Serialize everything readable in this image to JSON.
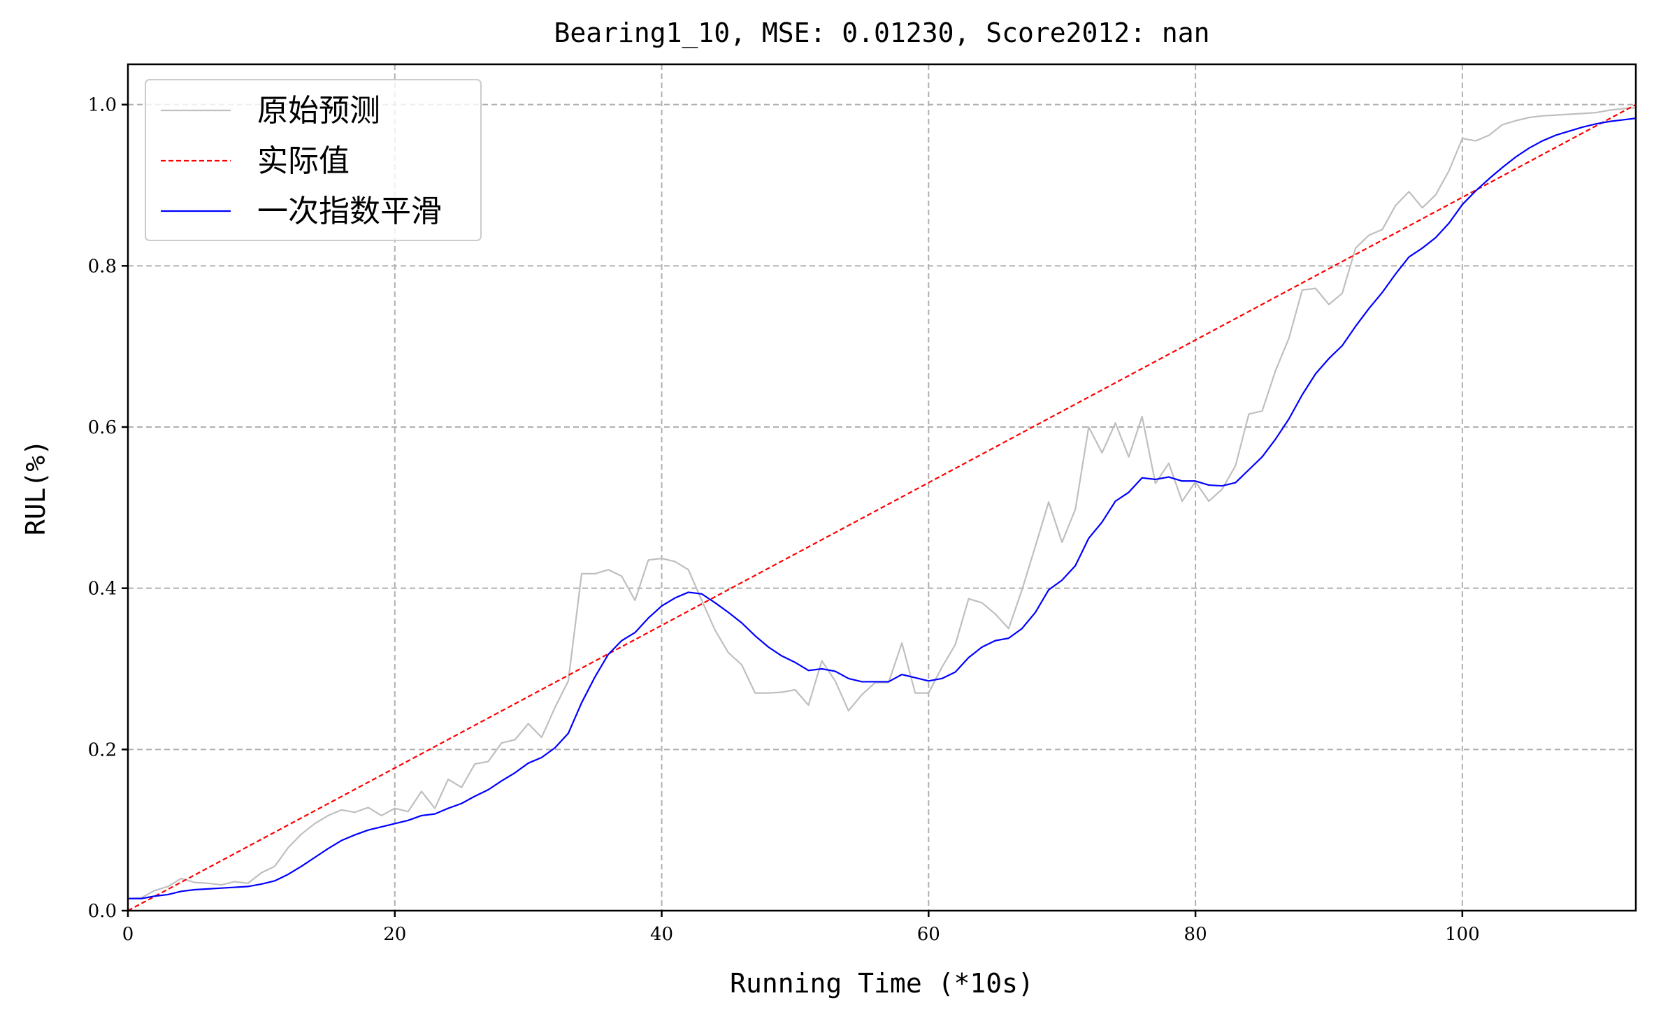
{
  "chart_data": {
    "type": "line",
    "title": "Bearing1_10, MSE: 0.01230, Score2012: nan",
    "xlabel": "Running Time (*10s)",
    "ylabel": "RUL(%)",
    "xlim": [
      0,
      113
    ],
    "ylim": [
      0,
      1.05
    ],
    "xticks": [
      0,
      20,
      40,
      60,
      80,
      100
    ],
    "yticks": [
      0.0,
      0.2,
      0.4,
      0.6,
      0.8,
      1.0
    ],
    "xtick_labels": [
      "0",
      "20",
      "40",
      "60",
      "80",
      "100"
    ],
    "ytick_labels": [
      "0.0",
      "0.2",
      "0.4",
      "0.6",
      "0.8",
      "1.0"
    ],
    "grid": true,
    "legend_position": "top-left",
    "series": [
      {
        "name": "原始预测",
        "color": "#bfbfbf",
        "style": "solid",
        "x": [
          0,
          1,
          2,
          3,
          4,
          5,
          6,
          7,
          8,
          9,
          10,
          11,
          12,
          13,
          14,
          15,
          16,
          17,
          18,
          19,
          20,
          21,
          22,
          23,
          24,
          25,
          26,
          27,
          28,
          29,
          30,
          31,
          32,
          33,
          34,
          35,
          36,
          37,
          38,
          39,
          40,
          41,
          42,
          43,
          44,
          45,
          46,
          47,
          48,
          49,
          50,
          51,
          52,
          53,
          54,
          55,
          56,
          57,
          58,
          59,
          60,
          61,
          62,
          63,
          64,
          65,
          66,
          67,
          68,
          69,
          70,
          71,
          72,
          73,
          74,
          75,
          76,
          77,
          78,
          79,
          80,
          81,
          82,
          83,
          84,
          85,
          86,
          87,
          88,
          89,
          90,
          91,
          92,
          93,
          94,
          95,
          96,
          97,
          98,
          99,
          100,
          101,
          102,
          103,
          104,
          105,
          106,
          107,
          108,
          109,
          110,
          111,
          112,
          113
        ],
        "y": [
          0.015,
          0.016,
          0.025,
          0.03,
          0.04,
          0.035,
          0.034,
          0.032,
          0.036,
          0.034,
          0.047,
          0.055,
          0.078,
          0.095,
          0.108,
          0.118,
          0.125,
          0.122,
          0.128,
          0.118,
          0.127,
          0.123,
          0.148,
          0.127,
          0.163,
          0.153,
          0.182,
          0.185,
          0.208,
          0.212,
          0.232,
          0.215,
          0.252,
          0.285,
          0.418,
          0.418,
          0.423,
          0.415,
          0.385,
          0.435,
          0.437,
          0.433,
          0.423,
          0.385,
          0.348,
          0.32,
          0.305,
          0.27,
          0.27,
          0.271,
          0.274,
          0.255,
          0.31,
          0.285,
          0.248,
          0.268,
          0.283,
          0.283,
          0.332,
          0.27,
          0.27,
          0.302,
          0.33,
          0.387,
          0.382,
          0.368,
          0.35,
          0.398,
          0.452,
          0.507,
          0.457,
          0.498,
          0.6,
          0.568,
          0.605,
          0.563,
          0.613,
          0.53,
          0.555,
          0.508,
          0.532,
          0.508,
          0.523,
          0.552,
          0.616,
          0.62,
          0.67,
          0.71,
          0.77,
          0.772,
          0.752,
          0.766,
          0.822,
          0.838,
          0.845,
          0.875,
          0.892,
          0.872,
          0.888,
          0.918,
          0.958,
          0.955,
          0.962,
          0.975,
          0.98,
          0.984,
          0.986,
          0.987,
          0.988,
          0.989,
          0.99,
          0.993,
          0.995,
          0.996
        ]
      },
      {
        "name": "实际值",
        "color": "#ff0000",
        "style": "dashed",
        "x": [
          0,
          113
        ],
        "y": [
          0.0,
          1.0
        ]
      },
      {
        "name": "一次指数平滑",
        "color": "#0000ff",
        "style": "solid",
        "x": [
          0,
          1,
          2,
          3,
          4,
          5,
          6,
          7,
          8,
          9,
          10,
          11,
          12,
          13,
          14,
          15,
          16,
          17,
          18,
          19,
          20,
          21,
          22,
          23,
          24,
          25,
          26,
          27,
          28,
          29,
          30,
          31,
          32,
          33,
          34,
          35,
          36,
          37,
          38,
          39,
          40,
          41,
          42,
          43,
          44,
          45,
          46,
          47,
          48,
          49,
          50,
          51,
          52,
          53,
          54,
          55,
          56,
          57,
          58,
          59,
          60,
          61,
          62,
          63,
          64,
          65,
          66,
          67,
          68,
          69,
          70,
          71,
          72,
          73,
          74,
          75,
          76,
          77,
          78,
          79,
          80,
          81,
          82,
          83,
          84,
          85,
          86,
          87,
          88,
          89,
          90,
          91,
          92,
          93,
          94,
          95,
          96,
          97,
          98,
          99,
          100,
          101,
          102,
          103,
          104,
          105,
          106,
          107,
          108,
          109,
          110,
          111,
          112,
          113
        ],
        "y": [
          0.015,
          0.015,
          0.018,
          0.02,
          0.024,
          0.026,
          0.027,
          0.028,
          0.029,
          0.03,
          0.033,
          0.037,
          0.045,
          0.055,
          0.066,
          0.077,
          0.087,
          0.094,
          0.1,
          0.104,
          0.108,
          0.112,
          0.118,
          0.12,
          0.127,
          0.133,
          0.142,
          0.15,
          0.161,
          0.171,
          0.183,
          0.19,
          0.202,
          0.22,
          0.258,
          0.29,
          0.318,
          0.335,
          0.345,
          0.363,
          0.378,
          0.388,
          0.395,
          0.393,
          0.382,
          0.37,
          0.357,
          0.341,
          0.327,
          0.316,
          0.308,
          0.298,
          0.3,
          0.297,
          0.288,
          0.284,
          0.284,
          0.284,
          0.293,
          0.289,
          0.285,
          0.288,
          0.296,
          0.314,
          0.327,
          0.335,
          0.338,
          0.35,
          0.37,
          0.398,
          0.41,
          0.428,
          0.462,
          0.482,
          0.508,
          0.519,
          0.537,
          0.535,
          0.538,
          0.533,
          0.533,
          0.528,
          0.527,
          0.531,
          0.547,
          0.563,
          0.585,
          0.61,
          0.64,
          0.666,
          0.685,
          0.701,
          0.725,
          0.747,
          0.767,
          0.79,
          0.811,
          0.822,
          0.835,
          0.853,
          0.876,
          0.893,
          0.908,
          0.922,
          0.935,
          0.946,
          0.955,
          0.962,
          0.967,
          0.972,
          0.976,
          0.979,
          0.981,
          0.983
        ]
      }
    ]
  }
}
